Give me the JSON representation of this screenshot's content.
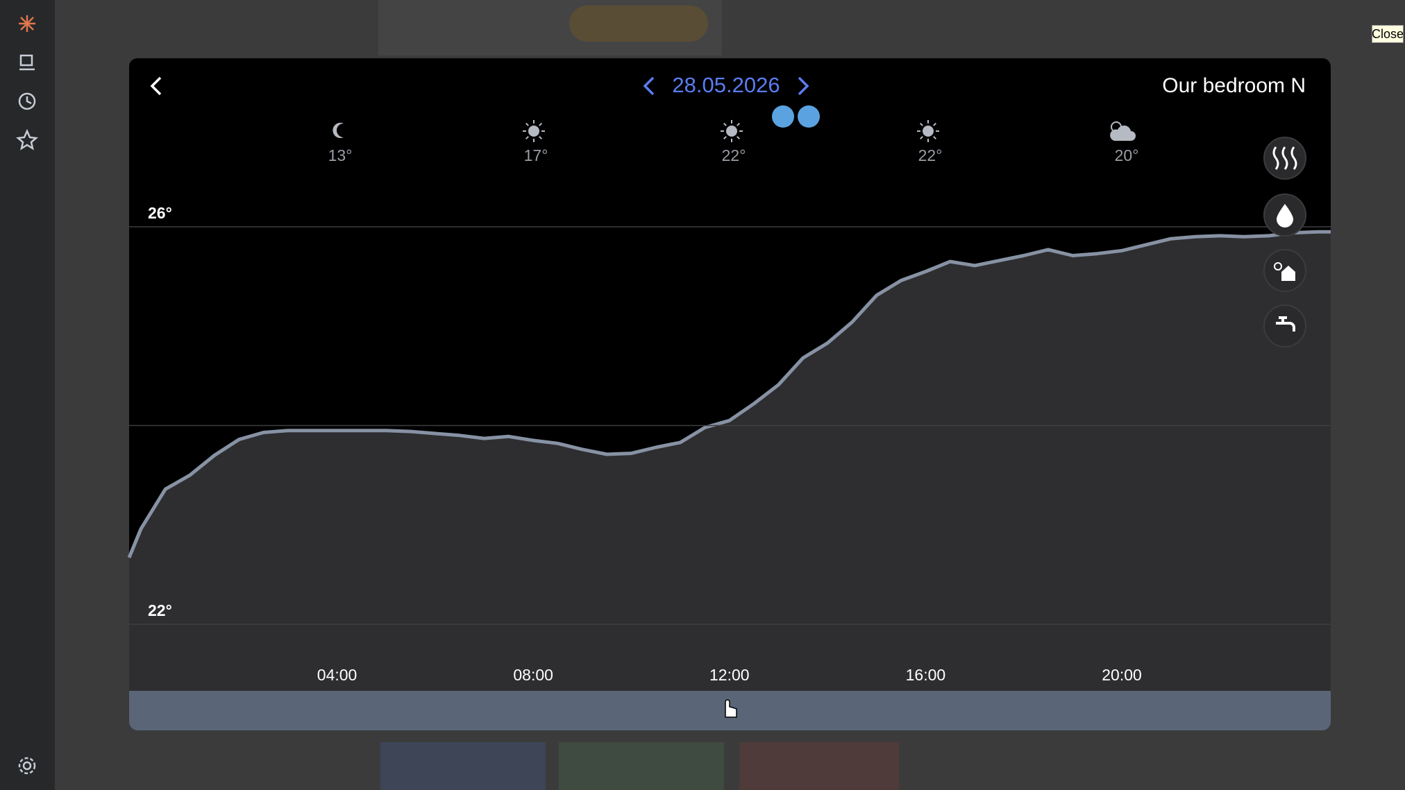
{
  "header": {
    "date": "28.05.2026",
    "room": "Our bedroom N"
  },
  "close_button": "Close",
  "forecast": [
    {
      "temp": "13°"
    },
    {
      "temp": "17°"
    },
    {
      "temp": "22°"
    },
    {
      "temp": "22°"
    },
    {
      "temp": "20°"
    }
  ],
  "chart_data": {
    "type": "line",
    "x": [
      -0.24,
      0,
      0.5,
      1,
      1.5,
      2,
      2.5,
      3,
      3.5,
      4,
      4.5,
      5,
      5.5,
      6,
      6.5,
      7,
      7.5,
      8,
      8.5,
      9,
      9.5,
      10,
      10.5,
      11,
      11.5,
      12,
      12.5,
      13,
      13.5,
      14,
      14.5,
      15,
      15.5,
      16,
      16.5,
      17,
      17.5,
      18,
      18.5,
      19,
      19.5,
      20,
      20.5,
      21,
      21.5,
      22,
      22.5,
      23,
      23.5,
      24,
      24.26
    ],
    "series": [
      {
        "color": "#8792a4",
        "values": [
          22.67,
          22.96,
          23.36,
          23.5,
          23.7,
          23.86,
          23.93,
          23.95,
          23.95,
          23.95,
          23.95,
          23.95,
          23.94,
          23.92,
          23.9,
          23.87,
          23.89,
          23.85,
          23.82,
          23.76,
          23.71,
          23.72,
          23.78,
          23.83,
          23.98,
          24.05,
          24.22,
          24.41,
          24.68,
          24.83,
          25.04,
          25.31,
          25.46,
          25.55,
          25.65,
          25.61,
          25.66,
          25.71,
          25.77,
          25.71,
          25.73,
          25.76,
          25.82,
          25.88,
          25.9,
          25.91,
          25.9,
          25.91,
          25.94,
          25.95,
          25.95
        ]
      }
    ],
    "xlim": [
      -0.24,
      24.26
    ],
    "xticks": [
      {
        "value": 4,
        "label": "04:00"
      },
      {
        "value": 8,
        "label": "08:00"
      },
      {
        "value": 12,
        "label": "12:00"
      },
      {
        "value": 16,
        "label": "16:00"
      },
      {
        "value": 20,
        "label": "20:00"
      }
    ],
    "ylim": [
      22,
      26
    ],
    "yticks": [
      {
        "value": 26,
        "label": "26°"
      },
      {
        "value": 22,
        "label": "22°"
      }
    ],
    "grid_lines": [
      22,
      24,
      26
    ]
  }
}
